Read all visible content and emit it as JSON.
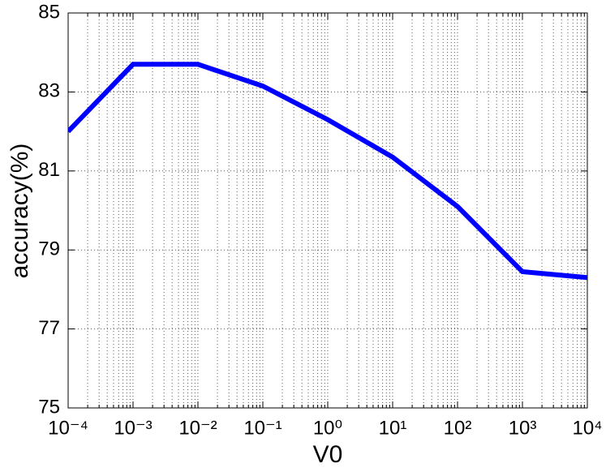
{
  "chart_data": {
    "type": "line",
    "x_label": "V0",
    "y_label": "accuracy(%)",
    "x": [
      0.0001,
      0.001,
      0.01,
      0.1,
      1,
      10,
      100,
      1000,
      10000
    ],
    "series": [
      {
        "name": "accuracy",
        "color": "#0000ff",
        "values": [
          82.0,
          83.7,
          83.7,
          83.15,
          82.3,
          81.35,
          80.1,
          78.45,
          78.3
        ]
      }
    ],
    "x_log": true,
    "xlim": [
      0.0001,
      10000
    ],
    "xticks": [
      {
        "value": 0.0001,
        "label": "10⁻⁴"
      },
      {
        "value": 0.001,
        "label": "10⁻³"
      },
      {
        "value": 0.01,
        "label": "10⁻²"
      },
      {
        "value": 0.1,
        "label": "10⁻¹"
      },
      {
        "value": 1,
        "label": "10⁰"
      },
      {
        "value": 10,
        "label": "10¹"
      },
      {
        "value": 100,
        "label": "10²"
      },
      {
        "value": 1000,
        "label": "10³"
      },
      {
        "value": 10000,
        "label": "10⁴"
      }
    ],
    "ylim": [
      75,
      85
    ],
    "yticks": [
      75,
      77,
      79,
      81,
      83,
      85
    ],
    "grid": true,
    "minor_grid": true
  }
}
